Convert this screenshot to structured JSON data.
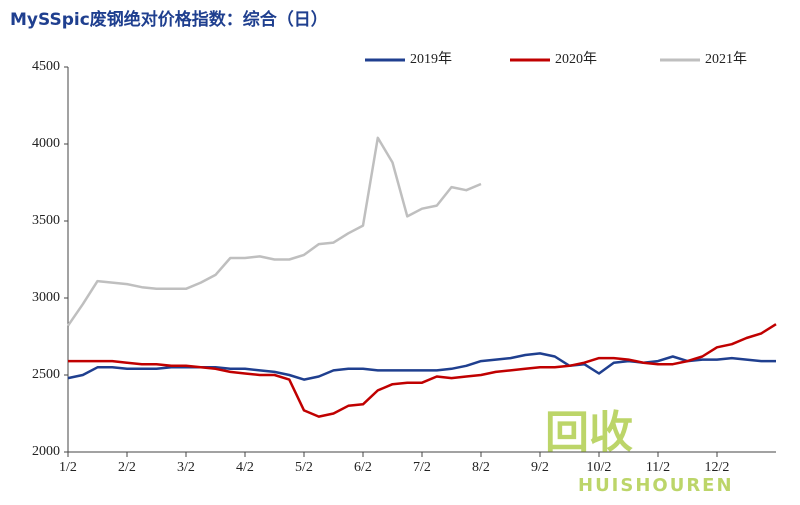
{
  "chart_data": {
    "type": "line",
    "title": "MySSpic废钢绝对价格指数：综合（日）",
    "x": [
      0,
      0.25,
      0.5,
      0.75,
      1,
      1.25,
      1.5,
      1.75,
      2,
      2.25,
      2.5,
      2.75,
      3,
      3.25,
      3.5,
      3.75,
      4,
      4.25,
      4.5,
      4.75,
      5,
      5.25,
      5.5,
      5.75,
      6,
      6.25,
      6.5,
      6.75,
      7,
      7.25,
      7.5,
      7.75,
      8,
      8.25,
      8.5,
      8.75,
      9,
      9.25,
      9.5,
      9.75,
      10,
      10.25,
      10.5,
      10.75,
      11,
      11.25,
      11.5,
      11.75,
      12
    ],
    "series": [
      {
        "name": "2019年",
        "color": "#1f3f8f",
        "values": [
          2480,
          2500,
          2550,
          2550,
          2540,
          2540,
          2540,
          2550,
          2550,
          2550,
          2550,
          2540,
          2540,
          2530,
          2520,
          2500,
          2470,
          2490,
          2530,
          2540,
          2540,
          2530,
          2530,
          2530,
          2530,
          2530,
          2540,
          2560,
          2590,
          2600,
          2610,
          2630,
          2640,
          2620,
          2560,
          2570,
          2510,
          2580,
          2590,
          2580,
          2590,
          2620,
          2590,
          2600,
          2600,
          2610,
          2600,
          2590,
          2590
        ]
      },
      {
        "name": "2020年",
        "color": "#c00000",
        "values": [
          2590,
          2590,
          2590,
          2590,
          2580,
          2570,
          2570,
          2560,
          2560,
          2550,
          2540,
          2520,
          2510,
          2500,
          2500,
          2470,
          2270,
          2230,
          2250,
          2300,
          2310,
          2400,
          2440,
          2450,
          2450,
          2490,
          2480,
          2490,
          2500,
          2520,
          2530,
          2540,
          2550,
          2550,
          2560,
          2580,
          2610,
          2610,
          2600,
          2580,
          2570,
          2570,
          2590,
          2620,
          2680,
          2700,
          2740,
          2770,
          2830
        ]
      },
      {
        "name": "2021年",
        "color": "#bfbfbf",
        "values": [
          2820,
          2960,
          3110,
          3100,
          3090,
          3070,
          3060,
          3060,
          3060,
          3100,
          3150,
          3260,
          3260,
          3270,
          3250,
          3250,
          3280,
          3350,
          3360,
          3420,
          3470,
          4040,
          3880,
          3530,
          3580,
          3600,
          3720,
          3700,
          3740,
          null,
          null,
          null,
          null,
          null,
          null,
          null,
          null,
          null,
          null,
          null,
          null,
          null,
          null,
          null,
          null,
          null,
          null,
          null,
          null
        ]
      }
    ],
    "xlim": [
      0,
      12
    ],
    "xticks": [
      {
        "value": 0,
        "label": "1/2"
      },
      {
        "value": 1,
        "label": "2/2"
      },
      {
        "value": 2,
        "label": "3/2"
      },
      {
        "value": 3,
        "label": "4/2"
      },
      {
        "value": 4,
        "label": "5/2"
      },
      {
        "value": 5,
        "label": "6/2"
      },
      {
        "value": 6,
        "label": "7/2"
      },
      {
        "value": 7,
        "label": "8/2"
      },
      {
        "value": 8,
        "label": "9/2"
      },
      {
        "value": 9,
        "label": "10/2"
      },
      {
        "value": 10,
        "label": "11/2"
      },
      {
        "value": 11,
        "label": "12/2"
      }
    ],
    "ylim": [
      2000,
      4500
    ],
    "yticks": [
      2000,
      2500,
      3000,
      3500,
      4000,
      4500
    ],
    "grid": false,
    "legend": "top",
    "watermark": [
      "回收",
      "HUISHOUREN"
    ]
  }
}
